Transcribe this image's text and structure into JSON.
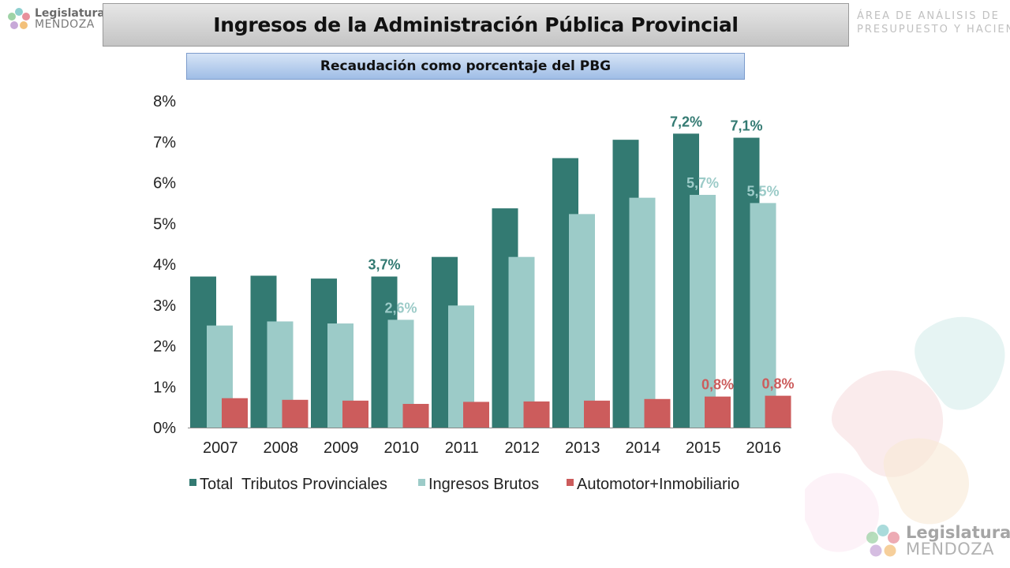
{
  "header": {
    "title": "Ingresos de la Administración Pública Provincial",
    "subtitle": "Recaudación como porcentaje del PBG"
  },
  "logo": {
    "line1": "Legislatura",
    "line2": "MENDOZA"
  },
  "area": {
    "line1": "ÁREA DE ANÁLISIS DE",
    "line2": "PRESUPUESTO Y HACIENDA"
  },
  "colors": {
    "total": "#337a72",
    "ingresos": "#9ccbc8",
    "automotor": "#cc5c5c"
  },
  "chart_data": {
    "type": "bar",
    "title": "",
    "xlabel": "",
    "ylabel": "",
    "ylim": [
      0,
      8
    ],
    "y_ticks": [
      "0%",
      "1%",
      "2%",
      "3%",
      "4%",
      "5%",
      "6%",
      "7%",
      "8%"
    ],
    "grid": false,
    "legend_position": "bottom",
    "categories": [
      "2007",
      "2008",
      "2009",
      "2010",
      "2011",
      "2012",
      "2013",
      "2014",
      "2015",
      "2016"
    ],
    "series": [
      {
        "name": "Total  Tributos Provinciales",
        "values": [
          3.7,
          3.72,
          3.65,
          3.7,
          4.18,
          5.37,
          6.6,
          7.05,
          7.2,
          7.1
        ]
      },
      {
        "name": "Ingresos Brutos",
        "values": [
          2.5,
          2.6,
          2.55,
          2.64,
          2.99,
          4.18,
          5.23,
          5.63,
          5.7,
          5.5
        ]
      },
      {
        "name": "Automotor+Inmobiliario",
        "values": [
          0.72,
          0.68,
          0.66,
          0.58,
          0.63,
          0.64,
          0.66,
          0.7,
          0.76,
          0.78
        ]
      }
    ],
    "data_labels": [
      {
        "series": 0,
        "index": 3,
        "text": "3,7%"
      },
      {
        "series": 0,
        "index": 8,
        "text": "7,2%"
      },
      {
        "series": 0,
        "index": 9,
        "text": "7,1%"
      },
      {
        "series": 1,
        "index": 3,
        "text": "2,6%"
      },
      {
        "series": 1,
        "index": 8,
        "text": "5,7%"
      },
      {
        "series": 1,
        "index": 9,
        "text": "5,5%"
      },
      {
        "series": 2,
        "index": 8,
        "text": "0,8%"
      },
      {
        "series": 2,
        "index": 9,
        "text": "0,8%"
      }
    ]
  }
}
